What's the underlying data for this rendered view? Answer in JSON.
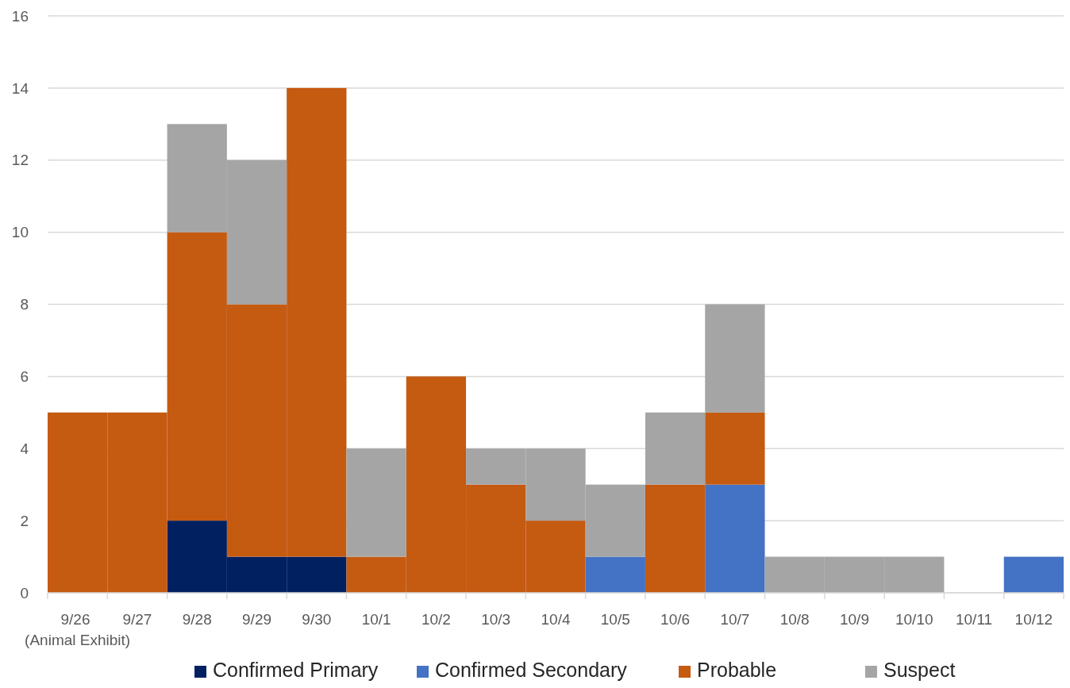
{
  "chart_data": {
    "type": "bar",
    "stacked": true,
    "categories": [
      "9/26 (Animal Exhibit)",
      "9/27",
      "9/28",
      "9/29",
      "9/30",
      "10/1",
      "10/2",
      "10/3",
      "10/4",
      "10/5",
      "10/6",
      "10/7",
      "10/8",
      "10/9",
      "10/10",
      "10/11",
      "10/12"
    ],
    "series": [
      {
        "name": "Confirmed Primary",
        "color": "#002060",
        "values": [
          0,
          0,
          2,
          1,
          1,
          0,
          0,
          0,
          0,
          0,
          0,
          0,
          0,
          0,
          0,
          0,
          0
        ]
      },
      {
        "name": "Confirmed Secondary",
        "color": "#4472c4",
        "values": [
          0,
          0,
          0,
          0,
          0,
          0,
          0,
          0,
          0,
          1,
          0,
          3,
          0,
          0,
          0,
          0,
          1
        ]
      },
      {
        "name": "Probable",
        "color": "#c55a11",
        "values": [
          5,
          5,
          8,
          7,
          13,
          1,
          6,
          3,
          2,
          0,
          3,
          2,
          0,
          0,
          0,
          0,
          0
        ]
      },
      {
        "name": "Suspect",
        "color": "#a5a5a5",
        "values": [
          0,
          0,
          3,
          4,
          0,
          3,
          0,
          1,
          2,
          2,
          2,
          3,
          1,
          1,
          1,
          0,
          0
        ]
      }
    ],
    "ylim": [
      0,
      16
    ],
    "yticks": [
      0,
      2,
      4,
      6,
      8,
      10,
      12,
      14,
      16
    ],
    "grid": "y",
    "legend": "bottom"
  }
}
